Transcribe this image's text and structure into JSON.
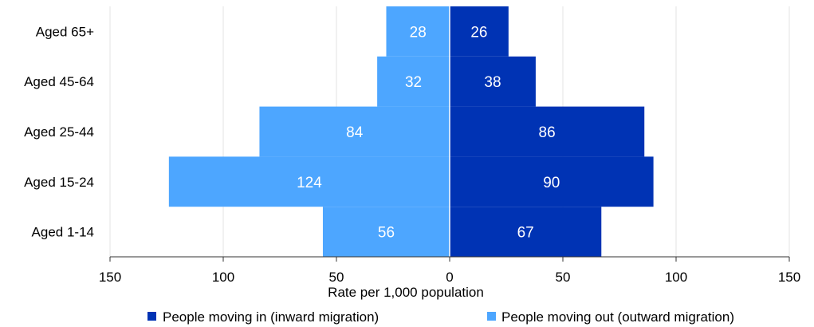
{
  "chart_data": {
    "type": "bar",
    "orientation": "horizontal-population-pyramid",
    "categories": [
      "Aged 65+",
      "Aged 45-64",
      "Aged 25-44",
      "Aged 15-24",
      "Aged 1-14"
    ],
    "series": [
      {
        "name": "People moving in (inward migration)",
        "values": [
          26,
          38,
          86,
          90,
          67
        ],
        "labels": [
          "26",
          "38",
          "86",
          "90",
          "67"
        ],
        "color": "#0033b4",
        "side": "right"
      },
      {
        "name": "People moving out (outward migration)",
        "values": [
          28,
          32,
          84,
          124,
          56
        ],
        "labels": [
          "28",
          "32",
          "84",
          "124",
          "56"
        ],
        "color": "#4da6ff",
        "side": "left"
      }
    ],
    "xlabel": "Rate per 1,000 population",
    "xlim": [
      -150,
      150
    ],
    "x_ticks": [
      -150,
      -100,
      -50,
      0,
      50,
      100,
      150
    ],
    "x_tick_labels": [
      "150",
      "100",
      "50",
      "0",
      "50",
      "100",
      "150"
    ],
    "grid": true,
    "legend_position": "bottom"
  }
}
